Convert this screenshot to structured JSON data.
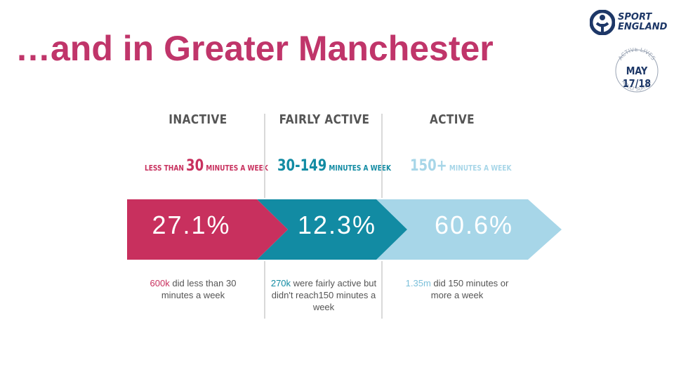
{
  "slide": {
    "title": "…and in Greater Manchester"
  },
  "logo": {
    "line1": "SPORT",
    "line2": "ENGLAND"
  },
  "badge": {
    "top_text": "ACTIVE LIVES",
    "date": "MAY 17/18",
    "bottom_text": "ADULT SURVEY"
  },
  "columns": [
    {
      "heading": "INACTIVE",
      "sub_pre": "LESS THAN ",
      "sub_num": "30",
      "sub_post": " MINUTES A WEEK",
      "percent": "27.1%",
      "desc_highlight": "600k",
      "desc_rest": " did less than 30 minutes a week",
      "color": "#c8305e"
    },
    {
      "heading": "FAIRLY ACTIVE",
      "sub_pre": "",
      "sub_num": "30-149",
      "sub_post": " MINUTES A WEEK",
      "percent": "12.3%",
      "desc_highlight": "270k",
      "desc_rest": " were fairly active but didn't reach150 minutes a week",
      "color": "#128ba3"
    },
    {
      "heading": "ACTIVE",
      "sub_pre": "",
      "sub_num": "150+",
      "sub_post": " MINUTES A WEEK",
      "percent": "60.6%",
      "desc_highlight": "1.35m",
      "desc_rest": " did 150 minutes or more a week",
      "color": "#a7d6e8"
    }
  ],
  "colors": {
    "title": "#c0356a",
    "heading": "#555555",
    "text": "#555555",
    "brand_navy": "#1d3767"
  }
}
